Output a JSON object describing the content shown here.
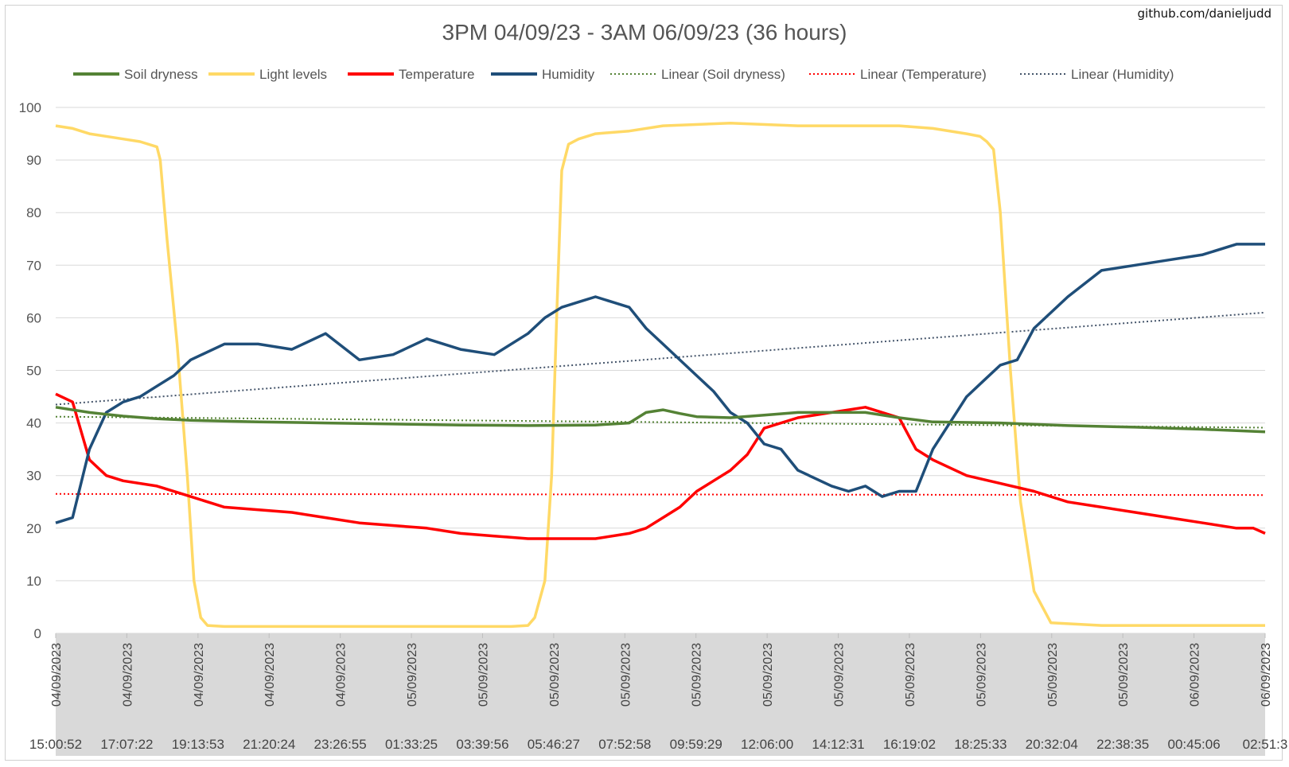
{
  "watermark": "github.com/danieljudd",
  "chart_data": {
    "type": "line",
    "title": "3PM 04/09/23 - 3AM 06/09/23 (36 hours)",
    "ylim": [
      0,
      100
    ],
    "yticks": [
      0,
      10,
      20,
      30,
      40,
      50,
      60,
      70,
      80,
      90,
      100
    ],
    "grid": true,
    "legend": "top",
    "x_range_hours": [
      0,
      35.85
    ],
    "x_tick_labels": [
      {
        "date": "04/09/2023",
        "time": "15:00:52"
      },
      {
        "date": "04/09/2023",
        "time": "17:07:22"
      },
      {
        "date": "04/09/2023",
        "time": "19:13:53"
      },
      {
        "date": "04/09/2023",
        "time": "21:20:24"
      },
      {
        "date": "04/09/2023",
        "time": "23:26:55"
      },
      {
        "date": "05/09/2023",
        "time": "01:33:25"
      },
      {
        "date": "05/09/2023",
        "time": "03:39:56"
      },
      {
        "date": "05/09/2023",
        "time": "05:46:27"
      },
      {
        "date": "05/09/2023",
        "time": "07:52:58"
      },
      {
        "date": "05/09/2023",
        "time": "09:59:29"
      },
      {
        "date": "05/09/2023",
        "time": "12:06:00"
      },
      {
        "date": "05/09/2023",
        "time": "14:12:31"
      },
      {
        "date": "05/09/2023",
        "time": "16:19:02"
      },
      {
        "date": "05/09/2023",
        "time": "18:25:33"
      },
      {
        "date": "05/09/2023",
        "time": "20:32:04"
      },
      {
        "date": "05/09/2023",
        "time": "22:38:35"
      },
      {
        "date": "06/09/2023",
        "time": "00:45:06"
      },
      {
        "date": "06/09/2023",
        "time": "02:51:3"
      }
    ],
    "series": [
      {
        "name": "Soil dryness",
        "color": "#548235",
        "style": "solid",
        "x": [
          0,
          1,
          2,
          3,
          4,
          6,
          8,
          10,
          12,
          14,
          16,
          17,
          17.5,
          18,
          18.5,
          19,
          20,
          21,
          22,
          23,
          24,
          25,
          26,
          28,
          30,
          32,
          34,
          35.85
        ],
        "y": [
          43,
          42,
          41.3,
          40.8,
          40.5,
          40.2,
          40,
          39.8,
          39.6,
          39.5,
          39.6,
          40,
          42,
          42.5,
          41.8,
          41.2,
          41,
          41.5,
          42,
          42,
          42,
          41,
          40.2,
          40,
          39.5,
          39.2,
          38.8,
          38.3
        ]
      },
      {
        "name": "Light levels",
        "color": "#ffd966",
        "style": "solid",
        "x": [
          0,
          0.5,
          1,
          2,
          2.5,
          3,
          3.1,
          3.3,
          3.6,
          3.9,
          4.1,
          4.3,
          4.5,
          5,
          10,
          13.5,
          14,
          14.2,
          14.5,
          14.7,
          14.85,
          15,
          15.2,
          15.5,
          16,
          17,
          18,
          20,
          22,
          24,
          25,
          26,
          27,
          27.4,
          27.6,
          27.8,
          28,
          28.3,
          28.6,
          29,
          29.5,
          31,
          33,
          35.85
        ],
        "y": [
          96.5,
          96,
          95,
          94,
          93.5,
          92.5,
          90,
          75,
          55,
          30,
          10,
          3,
          1.5,
          1.3,
          1.3,
          1.3,
          1.5,
          3,
          10,
          30,
          60,
          88,
          93,
          94,
          95,
          95.5,
          96.5,
          97,
          96.5,
          96.5,
          96.5,
          96,
          95,
          94.5,
          93.5,
          92,
          80,
          50,
          25,
          8,
          2,
          1.5,
          1.5,
          1.5
        ]
      },
      {
        "name": "Temperature",
        "color": "#ff0000",
        "style": "solid",
        "x": [
          0,
          0.5,
          1,
          1.5,
          2,
          3,
          4,
          5,
          7,
          8,
          9,
          11,
          12,
          13,
          14,
          15,
          16,
          17,
          17.5,
          18,
          18.5,
          19,
          19.5,
          20,
          20.5,
          21,
          22,
          23,
          24,
          24.5,
          25,
          25.5,
          26,
          27,
          28,
          29,
          30,
          31,
          32,
          33,
          34,
          35,
          35.5,
          35.85
        ],
        "y": [
          45.5,
          44,
          33,
          30,
          29,
          28,
          26,
          24,
          23,
          22,
          21,
          20,
          19,
          18.5,
          18,
          18,
          18,
          19,
          20,
          22,
          24,
          27,
          29,
          31,
          34,
          39,
          41,
          42,
          43,
          42,
          41,
          35,
          33,
          30,
          28.5,
          27,
          25,
          24,
          23,
          22,
          21,
          20,
          20,
          19
        ]
      },
      {
        "name": "Humidity",
        "color": "#1f4e79",
        "style": "solid",
        "x": [
          0,
          0.5,
          1,
          1.5,
          2,
          2.5,
          3,
          3.5,
          4,
          5,
          6,
          7,
          8,
          9,
          10,
          11,
          12,
          13,
          14,
          14.5,
          15,
          15.5,
          16,
          17,
          17.5,
          18,
          19,
          19.5,
          20,
          20.5,
          21,
          21.5,
          22,
          23,
          23.5,
          24,
          24.5,
          25,
          25.5,
          26,
          27,
          27.5,
          28,
          28.5,
          29,
          30,
          31,
          32,
          33,
          34,
          35,
          35.85
        ],
        "y": [
          21,
          22,
          35,
          42,
          44,
          45,
          47,
          49,
          52,
          55,
          55,
          54,
          57,
          52,
          53,
          56,
          54,
          53,
          57,
          60,
          62,
          63,
          64,
          62,
          58,
          55,
          49,
          46,
          42,
          40,
          36,
          35,
          31,
          28,
          27,
          28,
          26,
          27,
          27,
          35,
          45,
          48,
          51,
          52,
          58,
          64,
          69,
          70,
          71,
          72,
          74,
          74
        ]
      },
      {
        "name": "Linear (Soil dryness)",
        "color": "#548235",
        "style": "dotted",
        "x": [
          0,
          35.85
        ],
        "y": [
          41.2,
          39.1
        ]
      },
      {
        "name": "Linear (Temperature)",
        "color": "#ff0000",
        "style": "dotted",
        "x": [
          0,
          35.85
        ],
        "y": [
          26.5,
          26.3
        ]
      },
      {
        "name": "Linear (Humidity)",
        "color": "#44546a",
        "style": "dotted",
        "x": [
          0,
          35.85
        ],
        "y": [
          43.5,
          61
        ]
      }
    ]
  }
}
